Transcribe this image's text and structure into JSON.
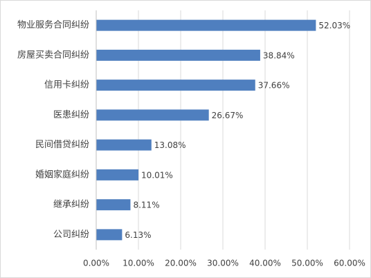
{
  "chart_data": {
    "type": "hbar",
    "categories": [
      "物业服务合同纠纷",
      "房屋买卖合同纠纷",
      "信用卡纠纷",
      "医患纠纷",
      "民间借贷纠纷",
      "婚姻家庭纠纷",
      "继承纠纷",
      "公司纠纷"
    ],
    "values": [
      52.03,
      38.84,
      37.66,
      26.67,
      13.08,
      10.01,
      8.11,
      6.13
    ],
    "value_labels": [
      "52.03%",
      "38.84%",
      "37.66%",
      "26.67%",
      "13.08%",
      "10.01%",
      "8.11%",
      "6.13%"
    ],
    "color": "#4f7fbf",
    "xlim": [
      0,
      60
    ],
    "xticks": [
      {
        "value": 0,
        "label": "0.00%"
      },
      {
        "value": 10,
        "label": "10.00%"
      },
      {
        "value": 20,
        "label": "20.00%"
      },
      {
        "value": 30,
        "label": "30.00%"
      },
      {
        "value": 40,
        "label": "40.00%"
      },
      {
        "value": 50,
        "label": "50.00%"
      },
      {
        "value": 60,
        "label": "60.00%"
      }
    ],
    "grid": true
  }
}
